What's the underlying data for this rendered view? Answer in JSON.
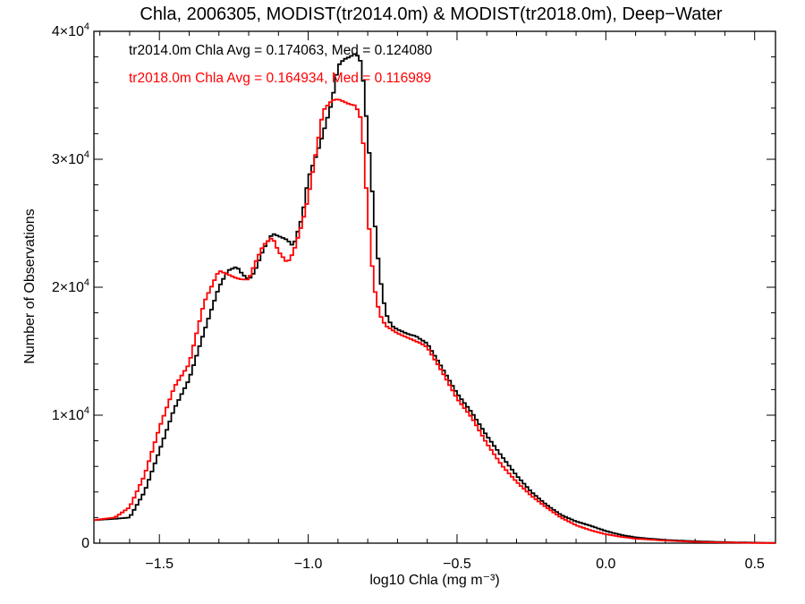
{
  "chart_data": {
    "type": "line",
    "title": "Chla, 2006305, MODIST(tr2014.0m) & MODIST(tr2018.0m), Deep−Water",
    "xlabel": "log10 Chla (mg m⁻³)",
    "ylabel": "Number of Observations",
    "xlim": [
      -1.72,
      0.57
    ],
    "ylim": [
      0,
      40000
    ],
    "x_ticks": [
      {
        "value": -1.5,
        "label": "−1.5"
      },
      {
        "value": -1.0,
        "label": "−1.0"
      },
      {
        "value": -0.5,
        "label": "−0.5"
      },
      {
        "value": 0.0,
        "label": "0.0"
      },
      {
        "value": 0.5,
        "label": "0.5"
      }
    ],
    "y_ticks": [
      {
        "value": 0,
        "mantissa": "0",
        "exponent": ""
      },
      {
        "value": 10000,
        "mantissa": "1×10",
        "exponent": "4"
      },
      {
        "value": 20000,
        "mantissa": "2×10",
        "exponent": "4"
      },
      {
        "value": 30000,
        "mantissa": "3×10",
        "exponent": "4"
      },
      {
        "value": 40000,
        "mantissa": "4×10",
        "exponent": "4"
      }
    ],
    "legend_placement": "top-left",
    "series": [
      {
        "label": "tr2014.0m Chla Avg = 0.174063, Med = 0.124080",
        "color": "#000000",
        "x": [
          -1.72,
          -1.65,
          -1.6,
          -1.55,
          -1.5,
          -1.45,
          -1.4,
          -1.35,
          -1.3,
          -1.27,
          -1.24,
          -1.22,
          -1.2,
          -1.18,
          -1.15,
          -1.12,
          -1.1,
          -1.07,
          -1.05,
          -1.02,
          -1.0,
          -0.97,
          -0.95,
          -0.92,
          -0.9,
          -0.88,
          -0.86,
          -0.84,
          -0.82,
          -0.8,
          -0.78,
          -0.76,
          -0.74,
          -0.72,
          -0.7,
          -0.68,
          -0.66,
          -0.64,
          -0.62,
          -0.6,
          -0.55,
          -0.5,
          -0.45,
          -0.4,
          -0.35,
          -0.3,
          -0.25,
          -0.2,
          -0.15,
          -0.1,
          -0.05,
          0.0,
          0.05,
          0.1,
          0.2,
          0.3,
          0.4,
          0.5,
          0.57
        ],
        "y": [
          1800,
          1900,
          2000,
          4000,
          7200,
          10500,
          12800,
          16500,
          20000,
          21300,
          21600,
          21000,
          20600,
          21200,
          23000,
          24200,
          24000,
          23700,
          23200,
          25500,
          28500,
          30500,
          32000,
          34500,
          37300,
          37800,
          38000,
          38300,
          37500,
          32000,
          26000,
          21000,
          18000,
          17000,
          16700,
          16500,
          16300,
          16200,
          15900,
          15600,
          13700,
          11700,
          10200,
          8400,
          6800,
          5300,
          4000,
          3000,
          2200,
          1700,
          1350,
          950,
          650,
          450,
          250,
          150,
          80,
          40,
          20
        ]
      },
      {
        "label": "tr2018.0m Chla Avg = 0.164934, Med = 0.116989",
        "color": "#ff0000",
        "x": [
          -1.72,
          -1.65,
          -1.6,
          -1.55,
          -1.5,
          -1.45,
          -1.4,
          -1.35,
          -1.3,
          -1.27,
          -1.24,
          -1.22,
          -1.2,
          -1.18,
          -1.15,
          -1.12,
          -1.1,
          -1.07,
          -1.05,
          -1.02,
          -1.0,
          -0.97,
          -0.95,
          -0.92,
          -0.9,
          -0.88,
          -0.86,
          -0.84,
          -0.82,
          -0.8,
          -0.78,
          -0.76,
          -0.74,
          -0.72,
          -0.7,
          -0.68,
          -0.66,
          -0.64,
          -0.62,
          -0.6,
          -0.55,
          -0.5,
          -0.45,
          -0.4,
          -0.35,
          -0.3,
          -0.25,
          -0.2,
          -0.15,
          -0.1,
          -0.05,
          0.0,
          0.05,
          0.1,
          0.2,
          0.3,
          0.4,
          0.5,
          0.57
        ],
        "y": [
          1800,
          2000,
          2800,
          5300,
          9000,
          12200,
          14000,
          18800,
          21300,
          21000,
          20700,
          20600,
          20600,
          21800,
          23300,
          23900,
          22800,
          21900,
          22700,
          25000,
          27000,
          31000,
          33800,
          34600,
          34700,
          34500,
          34300,
          34200,
          33000,
          26000,
          20200,
          17900,
          17000,
          16700,
          16400,
          16200,
          16000,
          15800,
          15600,
          15300,
          13400,
          11300,
          9800,
          7800,
          6100,
          4800,
          3700,
          2800,
          2000,
          1400,
          1000,
          700,
          500,
          350,
          200,
          100,
          50,
          20,
          10
        ]
      }
    ]
  }
}
